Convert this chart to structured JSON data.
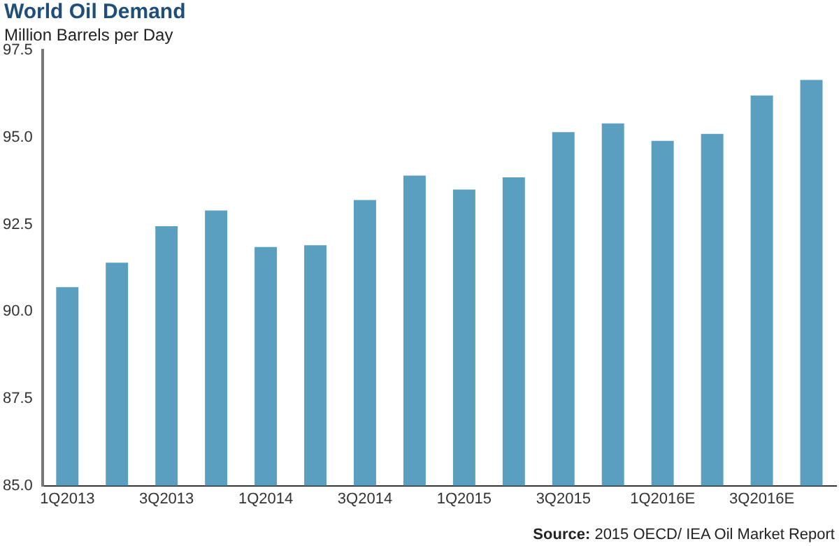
{
  "chart_data": {
    "type": "bar",
    "title": "World Oil Demand",
    "subtitle": "Million Barrels per Day",
    "categories": [
      "1Q2013",
      null,
      "3Q2013",
      null,
      "1Q2014",
      null,
      "3Q2014",
      null,
      "1Q2015",
      null,
      "3Q2015",
      null,
      "1Q2016E",
      null,
      "3Q2016E",
      null
    ],
    "values": [
      90.7,
      91.4,
      92.45,
      92.9,
      91.85,
      91.9,
      93.2,
      93.9,
      93.5,
      93.85,
      95.15,
      95.4,
      94.9,
      95.1,
      96.2,
      96.65
    ],
    "color": "#5a9ec0",
    "ylim": [
      85,
      97.5
    ],
    "yticks": [
      {
        "value": 85,
        "label": "85.0"
      },
      {
        "value": 87.5,
        "label": "87.5"
      },
      {
        "value": 90,
        "label": "90.0"
      },
      {
        "value": 92.5,
        "label": "92.5"
      },
      {
        "value": 95,
        "label": "95.0"
      },
      {
        "value": 97.5,
        "label": "97.5"
      }
    ],
    "annotations": [
      "Source: 2015 OECD/ IEA Oil Market Report"
    ]
  }
}
